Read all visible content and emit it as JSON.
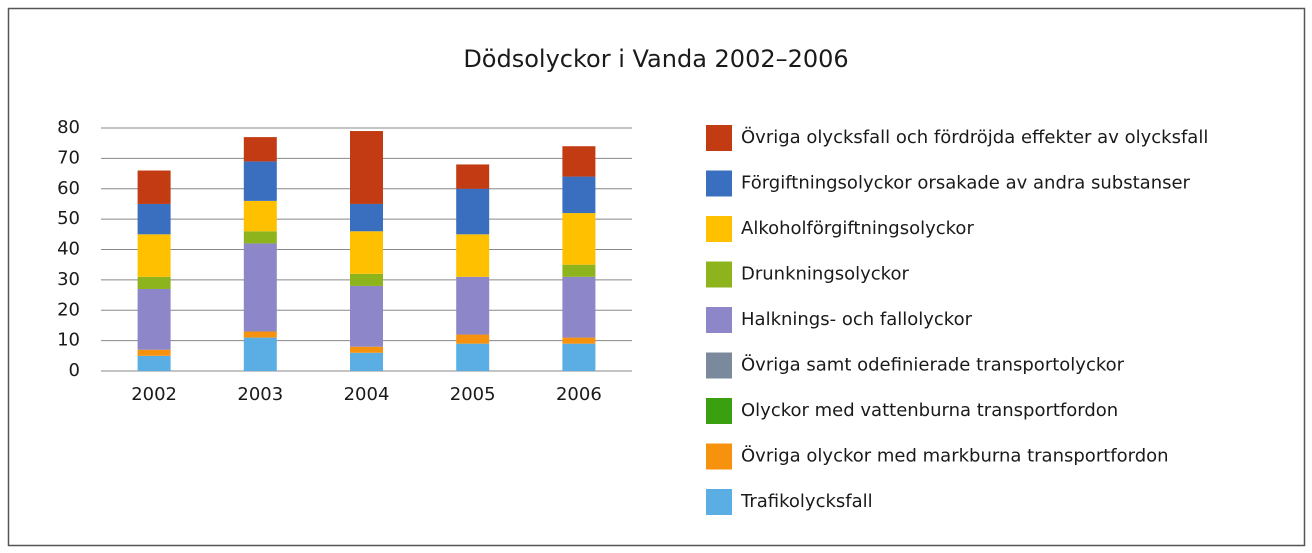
{
  "chart_data": {
    "type": "bar",
    "stacked": true,
    "title": "Dödsolyckor i Vanda 2002–2006",
    "categories": [
      "2002",
      "2003",
      "2004",
      "2005",
      "2006"
    ],
    "series": [
      {
        "name": "Trafikolycksfall",
        "color": "#5aaee4",
        "values": [
          5,
          11,
          6,
          9,
          9
        ]
      },
      {
        "name": "Övriga olyckor med markburna transportfordon",
        "color": "#f7920f",
        "values": [
          2,
          2,
          2,
          3,
          2
        ]
      },
      {
        "name": "Olyckor med vattenburna transportfordon",
        "color": "#3aa00f",
        "values": [
          0,
          0,
          0,
          0,
          0
        ]
      },
      {
        "name": "Övriga samt odefinierade transportolyckor",
        "color": "#7a8a9c",
        "values": [
          0,
          0,
          0,
          0,
          0
        ]
      },
      {
        "name": "Halknings- och fallolyckor",
        "color": "#8d86c8",
        "values": [
          20,
          29,
          20,
          19,
          20
        ]
      },
      {
        "name": "Drunkningsolyckor",
        "color": "#8db31d",
        "values": [
          4,
          4,
          4,
          0,
          4
        ]
      },
      {
        "name": "Alkoholförgiftningsolyckor",
        "color": "#ffc000",
        "values": [
          14,
          10,
          14,
          14,
          17
        ]
      },
      {
        "name": "Förgiftningsolyckor orsakade av andra substanser",
        "color": "#3a6fc0",
        "values": [
          10,
          13,
          9,
          15,
          12
        ]
      },
      {
        "name": "Övriga olycksfall och fördröjda effekter av olycksfall",
        "color": "#c23b13",
        "values": [
          11,
          8,
          24,
          8,
          10
        ]
      }
    ],
    "ylim": [
      0,
      80
    ],
    "yticks": [
      0,
      10,
      20,
      30,
      40,
      50,
      60,
      70,
      80
    ],
    "grid": true,
    "legend": "right"
  }
}
